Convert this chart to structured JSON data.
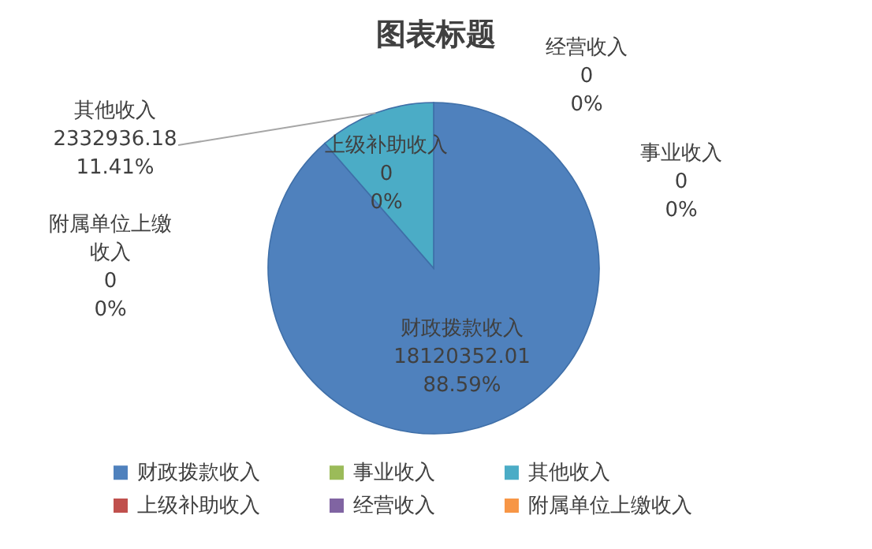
{
  "chart_data": {
    "type": "pie",
    "title": "图表标题",
    "categories": [
      "财政拨款收入",
      "上级补助收入",
      "事业收入",
      "经营收入",
      "其他收入",
      "附属单位上缴收入"
    ],
    "values": [
      18120352.01,
      0,
      0,
      0,
      2332936.18,
      0
    ],
    "colors": [
      "#4f81bd",
      "#c0504d",
      "#9bbb59",
      "#8064a2",
      "#4bacc6",
      "#f79646"
    ],
    "value_labels": [
      "18120352.01\n88.59%",
      "0\n0%",
      "0\n0%",
      "0\n0%",
      "2332936.18\n11.41%",
      "0\n0%"
    ],
    "legend": "bottom"
  }
}
